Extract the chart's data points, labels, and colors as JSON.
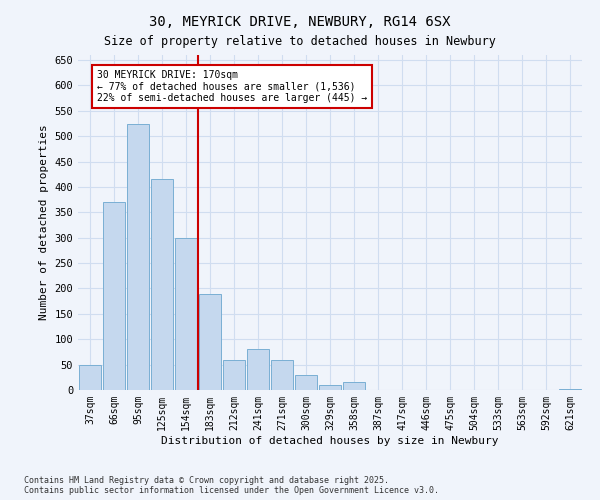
{
  "title_line1": "30, MEYRICK DRIVE, NEWBURY, RG14 6SX",
  "title_line2": "Size of property relative to detached houses in Newbury",
  "xlabel": "Distribution of detached houses by size in Newbury",
  "ylabel": "Number of detached properties",
  "categories": [
    "37sqm",
    "66sqm",
    "95sqm",
    "125sqm",
    "154sqm",
    "183sqm",
    "212sqm",
    "241sqm",
    "271sqm",
    "300sqm",
    "329sqm",
    "358sqm",
    "387sqm",
    "417sqm",
    "446sqm",
    "475sqm",
    "504sqm",
    "533sqm",
    "563sqm",
    "592sqm",
    "621sqm"
  ],
  "values": [
    50,
    370,
    525,
    415,
    300,
    190,
    60,
    80,
    60,
    30,
    10,
    15,
    0,
    0,
    0,
    0,
    0,
    0,
    0,
    0,
    2
  ],
  "bar_color": "#c5d8ee",
  "bar_edge_color": "#7aafd4",
  "vline_x": 4.5,
  "vline_color": "#cc0000",
  "annotation_text": "30 MEYRICK DRIVE: 170sqm\n← 77% of detached houses are smaller (1,536)\n22% of semi-detached houses are larger (445) →",
  "annotation_box_color": "#ffffff",
  "annotation_box_edge": "#cc0000",
  "ylim": [
    0,
    660
  ],
  "yticks": [
    0,
    50,
    100,
    150,
    200,
    250,
    300,
    350,
    400,
    450,
    500,
    550,
    600,
    650
  ],
  "footer": "Contains HM Land Registry data © Crown copyright and database right 2025.\nContains public sector information licensed under the Open Government Licence v3.0.",
  "bg_color": "#f0f4fb",
  "grid_color": "#d0ddf0"
}
